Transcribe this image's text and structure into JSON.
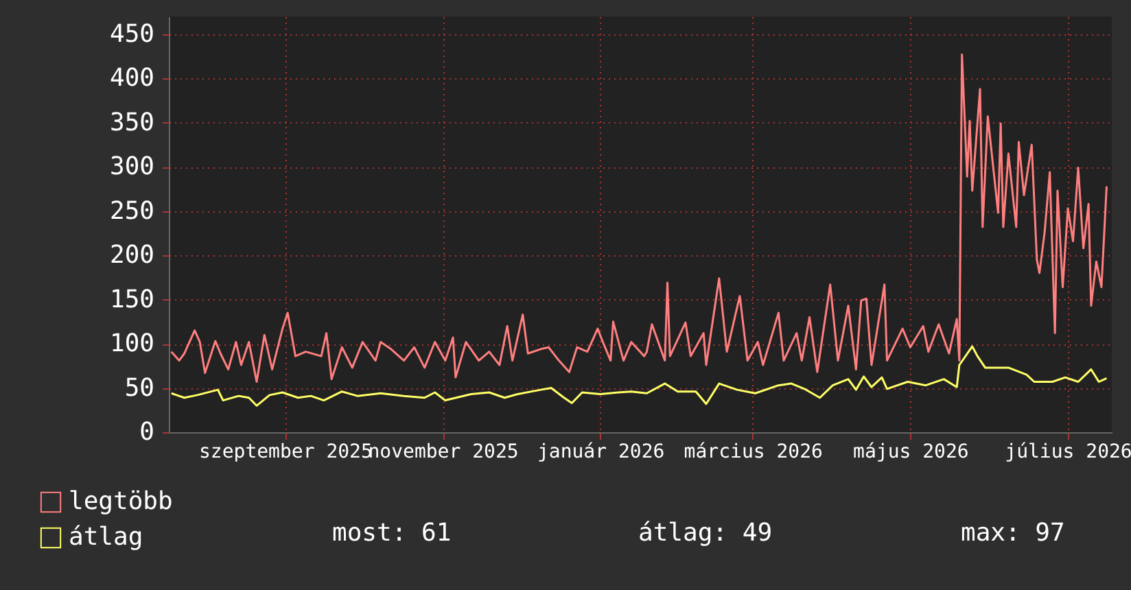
{
  "chart_data": {
    "type": "line",
    "xlim": [
      "2025-08-01",
      "2026-08-01"
    ],
    "xticks": [
      {
        "value": "2025-09-15",
        "label": "szeptember 2025"
      },
      {
        "value": "2025-11-15",
        "label": "november 2025"
      },
      {
        "value": "2026-01-15",
        "label": "január 2026"
      },
      {
        "value": "2026-03-15",
        "label": "március 2026"
      },
      {
        "value": "2026-05-15",
        "label": "május 2026"
      },
      {
        "value": "2026-07-15",
        "label": "július 2026"
      }
    ],
    "ylim": [
      0,
      470
    ],
    "yticks": [
      0,
      50,
      100,
      150,
      200,
      250,
      300,
      350,
      400,
      450
    ],
    "grid": true,
    "legend": "bottom",
    "marker": "none",
    "line_style": "solid",
    "annotations": [
      "most: 61",
      "átlag: 49",
      "max: 97"
    ],
    "series": [
      {
        "name": "legtöbb",
        "color": "#ff7f7f",
        "x": [
          "2025-08-02",
          "2025-08-05",
          "2025-08-07",
          "2025-08-11",
          "2025-08-13",
          "2025-08-15",
          "2025-08-19",
          "2025-08-21",
          "2025-08-24",
          "2025-08-27",
          "2025-08-29",
          "2025-09-01",
          "2025-09-04",
          "2025-09-07",
          "2025-09-10",
          "2025-09-14",
          "2025-09-16",
          "2025-09-19",
          "2025-09-23",
          "2025-09-29",
          "2025-10-01",
          "2025-10-03",
          "2025-10-07",
          "2025-10-11",
          "2025-10-15",
          "2025-10-20",
          "2025-10-22",
          "2025-10-26",
          "2025-10-31",
          "2025-11-04",
          "2025-11-08",
          "2025-11-12",
          "2025-11-16",
          "2025-11-19",
          "2025-11-20",
          "2025-11-24",
          "2025-11-29",
          "2025-12-03",
          "2025-12-07",
          "2025-12-10",
          "2025-12-12",
          "2025-12-16",
          "2025-12-18",
          "2025-12-23",
          "2025-12-26",
          "2025-12-30",
          "2026-01-03",
          "2026-01-06",
          "2026-01-10",
          "2026-01-14",
          "2026-01-16",
          "2026-01-19",
          "2026-01-20",
          "2026-01-24",
          "2026-01-27",
          "2026-02-01",
          "2026-02-02",
          "2026-02-04",
          "2026-02-09",
          "2026-02-10",
          "2026-02-11",
          "2026-02-17",
          "2026-02-19",
          "2026-02-24",
          "2026-02-25",
          "2026-03-02",
          "2026-03-05",
          "2026-03-10",
          "2026-03-13",
          "2026-03-17",
          "2026-03-19",
          "2026-03-25",
          "2026-03-27",
          "2026-04-01",
          "2026-04-03",
          "2026-04-06",
          "2026-04-09",
          "2026-04-14",
          "2026-04-17",
          "2026-04-21",
          "2026-04-24",
          "2026-04-26",
          "2026-04-28",
          "2026-04-30",
          "2026-05-05",
          "2026-05-06",
          "2026-05-12",
          "2026-05-15",
          "2026-05-20",
          "2026-05-22",
          "2026-05-26",
          "2026-05-30",
          "2026-06-02",
          "2026-06-03",
          "2026-06-04",
          "2026-06-06",
          "2026-06-07",
          "2026-06-08",
          "2026-06-11",
          "2026-06-12",
          "2026-06-14",
          "2026-06-18",
          "2026-06-19",
          "2026-06-20",
          "2026-06-22",
          "2026-06-25",
          "2026-06-26",
          "2026-06-28",
          "2026-07-01",
          "2026-07-03",
          "2026-07-04",
          "2026-07-06",
          "2026-07-08",
          "2026-07-10",
          "2026-07-11",
          "2026-07-13",
          "2026-07-15",
          "2026-07-17",
          "2026-07-19",
          "2026-07-21",
          "2026-07-23",
          "2026-07-24",
          "2026-07-26",
          "2026-07-28",
          "2026-07-30"
        ],
        "values": [
          91,
          81,
          89,
          115,
          102,
          67,
          103,
          89,
          71,
          102,
          76,
          102,
          57,
          110,
          71,
          117,
          135,
          86,
          91,
          86,
          112,
          60,
          96,
          73,
          102,
          81,
          102,
          94,
          81,
          96,
          73,
          102,
          81,
          107,
          62,
          102,
          81,
          91,
          76,
          120,
          81,
          133,
          89,
          94,
          96,
          81,
          68,
          96,
          91,
          117,
          102,
          81,
          125,
          81,
          102,
          86,
          91,
          122,
          81,
          169,
          86,
          124,
          86,
          112,
          76,
          174,
          91,
          154,
          81,
          102,
          76,
          135,
          81,
          112,
          81,
          130,
          68,
          167,
          81,
          143,
          71,
          149,
          151,
          76,
          167,
          81,
          117,
          96,
          120,
          91,
          122,
          89,
          128,
          81,
          427,
          289,
          352,
          273,
          388,
          232,
          357,
          248,
          349,
          232,
          315,
          232,
          328,
          268,
          325,
          195,
          180,
          226,
          294,
          112,
          273,
          164,
          253,
          216,
          299,
          208,
          258,
          143,
          193,
          164,
          278
        ]
      },
      {
        "name": "átlag",
        "color": "#ffff66",
        "x": [
          "2025-08-02",
          "2025-08-07",
          "2025-08-12",
          "2025-08-20",
          "2025-08-22",
          "2025-08-28",
          "2025-09-01",
          "2025-09-04",
          "2025-09-09",
          "2025-09-14",
          "2025-09-20",
          "2025-09-25",
          "2025-09-30",
          "2025-10-07",
          "2025-10-13",
          "2025-10-22",
          "2025-10-31",
          "2025-11-08",
          "2025-11-12",
          "2025-11-16",
          "2025-11-26",
          "2025-12-03",
          "2025-12-09",
          "2025-12-14",
          "2025-12-23",
          "2025-12-27",
          "2026-01-01",
          "2026-01-04",
          "2026-01-08",
          "2026-01-15",
          "2026-01-22",
          "2026-01-27",
          "2026-02-02",
          "2026-02-09",
          "2026-02-14",
          "2026-02-21",
          "2026-02-25",
          "2026-03-02",
          "2026-03-09",
          "2026-03-16",
          "2026-03-25",
          "2026-03-30",
          "2026-04-04",
          "2026-04-10",
          "2026-04-15",
          "2026-04-21",
          "2026-04-24",
          "2026-04-27",
          "2026-04-30",
          "2026-05-04",
          "2026-05-06",
          "2026-05-14",
          "2026-05-21",
          "2026-05-28",
          "2026-06-02",
          "2026-06-03",
          "2026-06-08",
          "2026-06-10",
          "2026-06-13",
          "2026-06-22",
          "2026-06-29",
          "2026-07-02",
          "2026-07-09",
          "2026-07-14",
          "2026-07-19",
          "2026-07-24",
          "2026-07-27",
          "2026-07-30"
        ],
        "values": [
          44,
          39,
          42,
          48,
          36,
          41,
          39,
          30,
          42,
          45,
          39,
          41,
          36,
          46,
          41,
          44,
          41,
          39,
          45,
          36,
          43,
          45,
          39,
          43,
          48,
          50,
          39,
          33,
          45,
          43,
          45,
          46,
          44,
          55,
          46,
          46,
          32,
          55,
          48,
          44,
          53,
          55,
          49,
          39,
          53,
          60,
          48,
          63,
          51,
          62,
          49,
          57,
          53,
          60,
          51,
          76,
          97,
          86,
          73,
          73,
          65,
          57,
          57,
          62,
          57,
          71,
          57,
          61
        ]
      }
    ]
  }
}
